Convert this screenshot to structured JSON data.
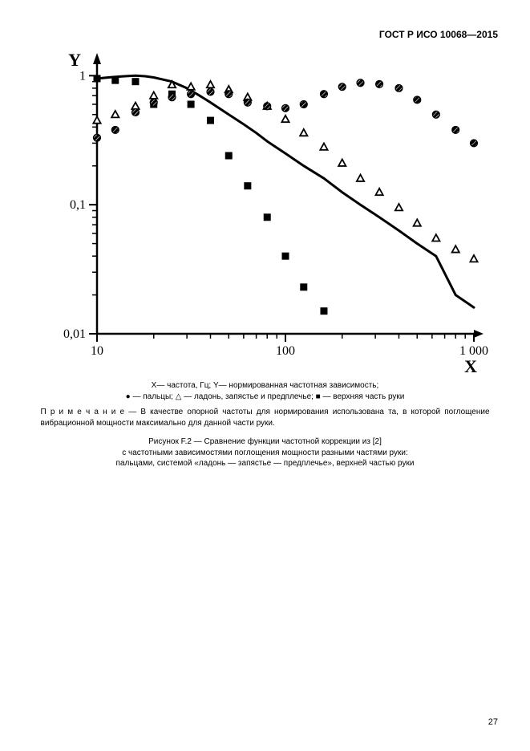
{
  "header": {
    "standard_id": "ГОСТ Р ИСО 10068—2015"
  },
  "chart": {
    "type": "scatter+line",
    "x_label": "X",
    "y_label": "Y",
    "x_label_fontsize": 22,
    "y_label_fontsize": 22,
    "tick_fontsize": 16,
    "xscale": "log",
    "yscale": "log",
    "xlim": [
      10,
      1000
    ],
    "ylim": [
      0.01,
      1.3
    ],
    "xticks": [
      10,
      100,
      1000
    ],
    "xtick_labels": [
      "10",
      "100",
      "1 000"
    ],
    "yticks": [
      0.01,
      0.1,
      1
    ],
    "ytick_labels": [
      "0,01",
      "0,1",
      "1"
    ],
    "background_color": "#ffffff",
    "axis_color": "#000000",
    "axis_width": 2.5,
    "tick_len": 7,
    "series_line": {
      "name": "frequency correction function",
      "color": "#000000",
      "width": 3,
      "points": [
        [
          10,
          0.95
        ],
        [
          12,
          0.975
        ],
        [
          14,
          0.99
        ],
        [
          16,
          1.0
        ],
        [
          18,
          0.99
        ],
        [
          20,
          0.97
        ],
        [
          25,
          0.9
        ],
        [
          30,
          0.8
        ],
        [
          35,
          0.7
        ],
        [
          40,
          0.62
        ],
        [
          50,
          0.5
        ],
        [
          60,
          0.42
        ],
        [
          70,
          0.36
        ],
        [
          80,
          0.31
        ],
        [
          100,
          0.25
        ],
        [
          125,
          0.2
        ],
        [
          160,
          0.16
        ],
        [
          200,
          0.125
        ],
        [
          250,
          0.1
        ],
        [
          315,
          0.08
        ],
        [
          400,
          0.063
        ],
        [
          500,
          0.05
        ],
        [
          630,
          0.04
        ],
        [
          800,
          0.02
        ],
        [
          1000,
          0.016
        ]
      ]
    },
    "series_fingers": {
      "name": "fingers",
      "marker": "filled-circle-hatched",
      "marker_color": "#000000",
      "marker_size": 7,
      "points": [
        [
          10,
          0.33
        ],
        [
          12.5,
          0.38
        ],
        [
          16,
          0.52
        ],
        [
          20,
          0.62
        ],
        [
          25,
          0.68
        ],
        [
          31.5,
          0.72
        ],
        [
          40,
          0.75
        ],
        [
          50,
          0.72
        ],
        [
          63,
          0.62
        ],
        [
          80,
          0.58
        ],
        [
          100,
          0.56
        ],
        [
          125,
          0.6
        ],
        [
          160,
          0.72
        ],
        [
          200,
          0.82
        ],
        [
          250,
          0.88
        ],
        [
          315,
          0.86
        ],
        [
          400,
          0.8
        ],
        [
          500,
          0.65
        ],
        [
          630,
          0.5
        ],
        [
          800,
          0.38
        ],
        [
          1000,
          0.3
        ]
      ]
    },
    "series_palm": {
      "name": "palm-wrist-forearm",
      "marker": "open-triangle",
      "marker_color": "#000000",
      "marker_size": 8,
      "points": [
        [
          10,
          0.45
        ],
        [
          12.5,
          0.5
        ],
        [
          16,
          0.58
        ],
        [
          20,
          0.7
        ],
        [
          25,
          0.85
        ],
        [
          31.5,
          0.82
        ],
        [
          40,
          0.85
        ],
        [
          50,
          0.78
        ],
        [
          63,
          0.68
        ],
        [
          80,
          0.58
        ],
        [
          100,
          0.46
        ],
        [
          125,
          0.36
        ],
        [
          160,
          0.28
        ],
        [
          200,
          0.21
        ],
        [
          250,
          0.16
        ],
        [
          315,
          0.125
        ],
        [
          400,
          0.095
        ],
        [
          500,
          0.072
        ],
        [
          630,
          0.055
        ],
        [
          800,
          0.045
        ],
        [
          1000,
          0.038
        ]
      ]
    },
    "series_upper_arm": {
      "name": "upper part of arm",
      "marker": "filled-square",
      "marker_color": "#000000",
      "marker_size": 9,
      "points": [
        [
          10,
          0.95
        ],
        [
          12.5,
          0.92
        ],
        [
          16,
          0.9
        ],
        [
          20,
          0.6
        ],
        [
          25,
          0.72
        ],
        [
          31.5,
          0.6
        ],
        [
          40,
          0.45
        ],
        [
          50,
          0.24
        ],
        [
          63,
          0.14
        ],
        [
          80,
          0.08
        ],
        [
          100,
          0.04
        ],
        [
          125,
          0.023
        ],
        [
          160,
          0.015
        ]
      ]
    }
  },
  "caption": {
    "line1": "X— частота, Гц; Y— нормированная частотная зависимость;",
    "line2": "● — пальцы; △ — ладонь, запястье и предплечье; ■ — верхняя часть руки",
    "note_label": "П р и м е ч а н и е",
    "note_text": "— В качестве опорной частоты для нормирования использована та, в которой поглощение вибрационной мощности максимально для данной части руки.",
    "fig_title_1": "Рисунок F.2 — Сравнение функции частотной коррекции из [2]",
    "fig_title_2": "с частотными зависимостями поглощения мощности разными частями руки:",
    "fig_title_3": "пальцами, системой «ладонь — запястье — предплечье», верхней частью руки"
  },
  "page_number": "27"
}
